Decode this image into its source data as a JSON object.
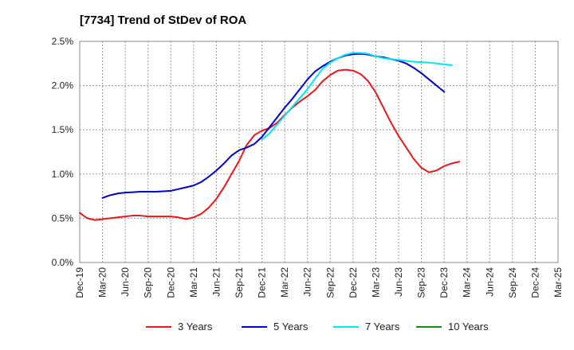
{
  "chart_data": {
    "type": "line",
    "title": "[7734]  Trend of StDev of ROA",
    "xlabel": "",
    "ylabel": "",
    "ylim": [
      0,
      2.5
    ],
    "y_ticks": [
      "0.0%",
      "0.5%",
      "1.0%",
      "1.5%",
      "2.0%",
      "2.5%"
    ],
    "y_tick_values": [
      0,
      0.5,
      1.0,
      1.5,
      2.0,
      2.5
    ],
    "x_ticks": [
      "Dec-19",
      "Mar-20",
      "Jun-20",
      "Sep-20",
      "Dec-20",
      "Mar-21",
      "Jun-21",
      "Sep-21",
      "Dec-21",
      "Mar-22",
      "Jun-22",
      "Sep-22",
      "Dec-22",
      "Mar-23",
      "Jun-23",
      "Sep-23",
      "Dec-23",
      "Mar-24",
      "Jun-24",
      "Sep-24",
      "Dec-24",
      "Mar-25"
    ],
    "grid": true,
    "legend_position": "bottom",
    "series": [
      {
        "name": "3 Years",
        "color": "#e41a1c",
        "start_index": 0,
        "values": [
          0.56,
          0.5,
          0.48,
          0.49,
          0.5,
          0.51,
          0.52,
          0.53,
          0.53,
          0.52,
          0.52,
          0.52,
          0.52,
          0.51,
          0.49,
          0.51,
          0.55,
          0.62,
          0.72,
          0.85,
          1.0,
          1.15,
          1.33,
          1.44,
          1.49,
          1.52,
          1.58,
          1.67,
          1.75,
          1.82,
          1.88,
          1.95,
          2.05,
          2.12,
          2.17,
          2.18,
          2.17,
          2.13,
          2.05,
          1.92,
          1.75,
          1.58,
          1.43,
          1.3,
          1.17,
          1.07,
          1.02,
          1.04,
          1.09,
          1.12,
          1.14
        ]
      },
      {
        "name": "5 Years",
        "color": "#0000cc",
        "start_index": 3,
        "values": [
          0.73,
          0.76,
          0.78,
          0.79,
          0.795,
          0.8,
          0.8,
          0.8,
          0.805,
          0.81,
          0.83,
          0.85,
          0.87,
          0.91,
          0.97,
          1.04,
          1.12,
          1.21,
          1.27,
          1.3,
          1.34,
          1.42,
          1.53,
          1.64,
          1.75,
          1.85,
          1.96,
          2.07,
          2.16,
          2.22,
          2.27,
          2.31,
          2.34,
          2.355,
          2.36,
          2.35,
          2.33,
          2.32,
          2.3,
          2.28,
          2.25,
          2.2,
          2.14,
          2.07,
          2.0,
          1.93
        ]
      },
      {
        "name": "7 Years",
        "color": "#00e5ee",
        "start_index": 24,
        "values": [
          1.39,
          1.46,
          1.56,
          1.66,
          1.76,
          1.86,
          1.96,
          2.08,
          2.19,
          2.26,
          2.31,
          2.35,
          2.37,
          2.37,
          2.36,
          2.33,
          2.31,
          2.3,
          2.29,
          2.28,
          2.27,
          2.265,
          2.26,
          2.25,
          2.24,
          2.23
        ]
      },
      {
        "name": "10 Years",
        "color": "#1a8a1a",
        "start_index": 0,
        "values": []
      }
    ]
  }
}
